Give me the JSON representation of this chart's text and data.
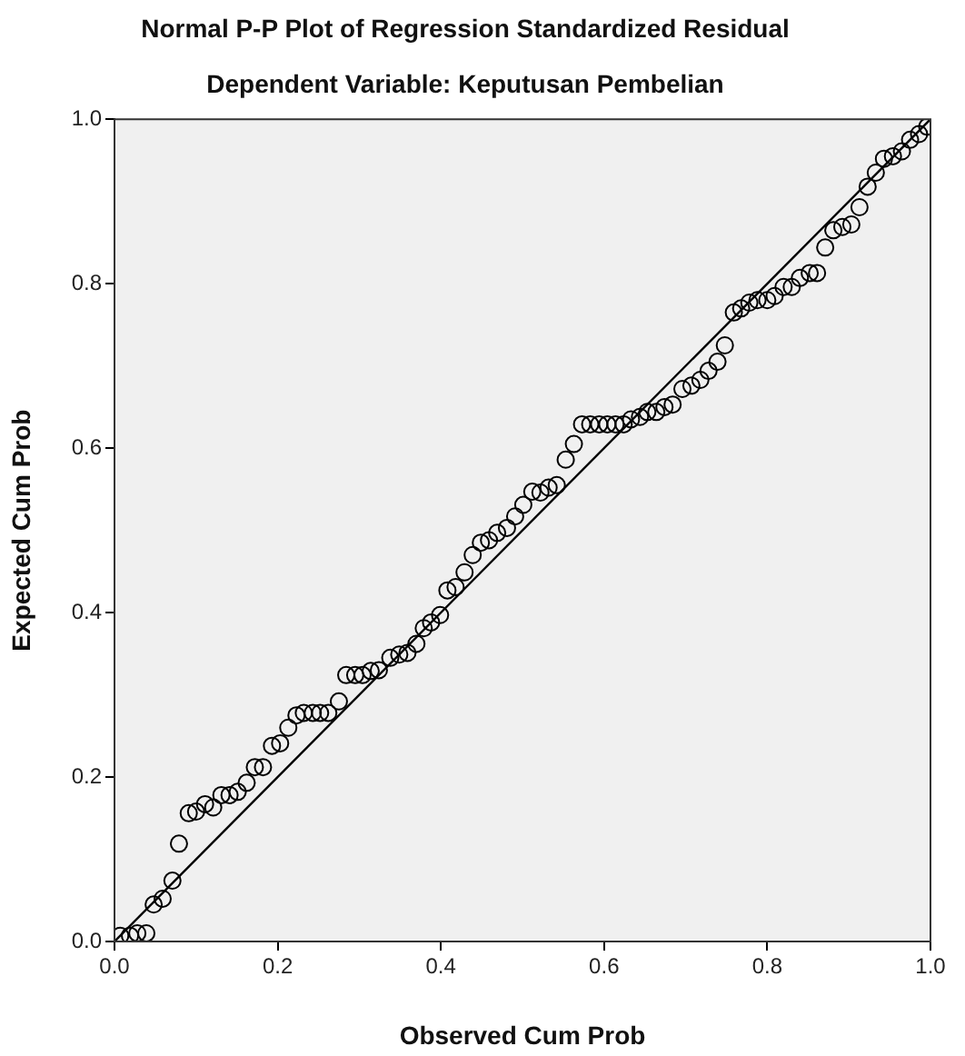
{
  "chart_data": {
    "type": "scatter",
    "title": "Normal P-P Plot of Regression Standardized Residual",
    "subtitle": "Dependent Variable: Keputusan Pembelian",
    "xlabel": "Observed Cum Prob",
    "ylabel": "Expected Cum Prob",
    "series": [
      {
        "color": "#000000",
        "x": [
          0.007,
          0.019,
          0.028,
          0.039,
          0.048,
          0.059,
          0.071,
          0.079,
          0.091,
          0.1,
          0.111,
          0.121,
          0.131,
          0.141,
          0.151,
          0.162,
          0.172,
          0.182,
          0.193,
          0.203,
          0.213,
          0.223,
          0.232,
          0.243,
          0.252,
          0.262,
          0.275,
          0.284,
          0.295,
          0.304,
          0.314,
          0.324,
          0.338,
          0.349,
          0.359,
          0.37,
          0.379,
          0.388,
          0.399,
          0.408,
          0.418,
          0.429,
          0.439,
          0.449,
          0.459,
          0.469,
          0.481,
          0.491,
          0.501,
          0.512,
          0.522,
          0.532,
          0.542,
          0.553,
          0.563,
          0.573,
          0.583,
          0.594,
          0.604,
          0.614,
          0.624,
          0.633,
          0.644,
          0.653,
          0.664,
          0.674,
          0.684,
          0.696,
          0.707,
          0.718,
          0.728,
          0.739,
          0.748,
          0.759,
          0.768,
          0.778,
          0.788,
          0.8,
          0.809,
          0.82,
          0.83,
          0.84,
          0.852,
          0.861,
          0.871,
          0.881,
          0.892,
          0.903,
          0.913,
          0.923,
          0.933,
          0.943,
          0.954,
          0.965,
          0.975,
          0.986,
          0.996
        ],
        "values": [
          0.007,
          0.007,
          0.01,
          0.01,
          0.045,
          0.052,
          0.074,
          0.119,
          0.156,
          0.158,
          0.167,
          0.163,
          0.178,
          0.178,
          0.182,
          0.193,
          0.212,
          0.212,
          0.238,
          0.241,
          0.26,
          0.275,
          0.278,
          0.278,
          0.278,
          0.278,
          0.292,
          0.324,
          0.324,
          0.324,
          0.329,
          0.33,
          0.345,
          0.349,
          0.351,
          0.362,
          0.381,
          0.388,
          0.397,
          0.427,
          0.431,
          0.449,
          0.47,
          0.485,
          0.488,
          0.497,
          0.503,
          0.517,
          0.531,
          0.547,
          0.546,
          0.552,
          0.555,
          0.586,
          0.605,
          0.629,
          0.629,
          0.629,
          0.629,
          0.629,
          0.629,
          0.635,
          0.638,
          0.644,
          0.644,
          0.65,
          0.653,
          0.672,
          0.676,
          0.683,
          0.694,
          0.705,
          0.725,
          0.765,
          0.77,
          0.777,
          0.78,
          0.78,
          0.785,
          0.796,
          0.796,
          0.807,
          0.813,
          0.813,
          0.844,
          0.865,
          0.869,
          0.872,
          0.893,
          0.918,
          0.935,
          0.952,
          0.955,
          0.961,
          0.975,
          0.982,
          0.991
        ]
      },
      {
        "type": "line",
        "marker": "none",
        "color": "#000000",
        "x": [
          0,
          1
        ],
        "values": [
          0,
          1
        ]
      }
    ],
    "xlim": [
      0,
      1
    ],
    "ylim": [
      0,
      1
    ],
    "xticks": [
      {
        "value": 0,
        "label": "0.0"
      },
      {
        "value": 0.2,
        "label": "0.2"
      },
      {
        "value": 0.4,
        "label": "0.4"
      },
      {
        "value": 0.6,
        "label": "0.6"
      },
      {
        "value": 0.8,
        "label": "0.8"
      },
      {
        "value": 1,
        "label": "1.0"
      }
    ],
    "yticks": [
      {
        "value": 0,
        "label": "0.0"
      },
      {
        "value": 0.2,
        "label": "0.2"
      },
      {
        "value": 0.4,
        "label": "0.4"
      },
      {
        "value": 0.6,
        "label": "0.6"
      },
      {
        "value": 0.8,
        "label": "0.8"
      },
      {
        "value": 1,
        "label": "1.0"
      }
    ],
    "marker": "circle",
    "line_style": "solid",
    "grid": false,
    "legend": false
  }
}
